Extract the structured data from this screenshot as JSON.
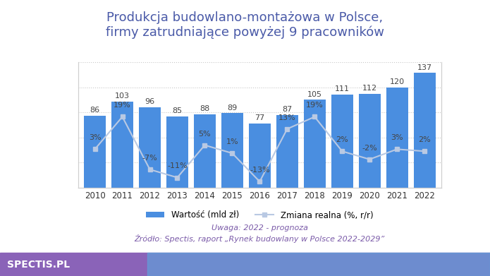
{
  "chart_data": {
    "type": "bar",
    "title": "Produkcja budowlano-montażowa w Polsce,\nfirmy zatrudniające powyżej 9 pracowników",
    "categories": [
      "2010",
      "2011",
      "2012",
      "2013",
      "2014",
      "2015",
      "2016",
      "2017",
      "2018",
      "2019",
      "2020",
      "2021",
      "2022"
    ],
    "series": [
      {
        "name": "Wartość (mld zł)",
        "type": "bar",
        "color": "#4a8ee0",
        "values": [
          86,
          103,
          96,
          85,
          88,
          89,
          77,
          87,
          105,
          111,
          112,
          120,
          137
        ]
      },
      {
        "name": "Zmiana realna (%, r/r)",
        "type": "line",
        "axis": "y2",
        "color": "#b9c9e3",
        "marker": "s",
        "line_style": "solid",
        "values": [
          3,
          19,
          -7,
          -11,
          5,
          1,
          -13,
          13,
          19,
          2,
          -2,
          3,
          2
        ],
        "value_labels": [
          "3%",
          "19%",
          "-7%",
          "-11%",
          "5%",
          "1%",
          "-13%",
          "13%",
          "19%",
          "2%",
          "-2%",
          "3%",
          "2%"
        ]
      }
    ],
    "ylim": [
      0,
      150
    ],
    "yticks": [
      0,
      30,
      60,
      90,
      120,
      150
    ],
    "y2lim": [
      -16,
      46
    ],
    "y2ticks": [],
    "grid": true,
    "tick_labels": "x",
    "data_labels": true,
    "legend": "bottom",
    "annotations": [
      "Uwaga: 2022 - prognoza",
      "Źródło: Spectis, raport „Rynek budowlany w Polsce 2022-2029”",
      "SPECTIS.PL"
    ]
  }
}
